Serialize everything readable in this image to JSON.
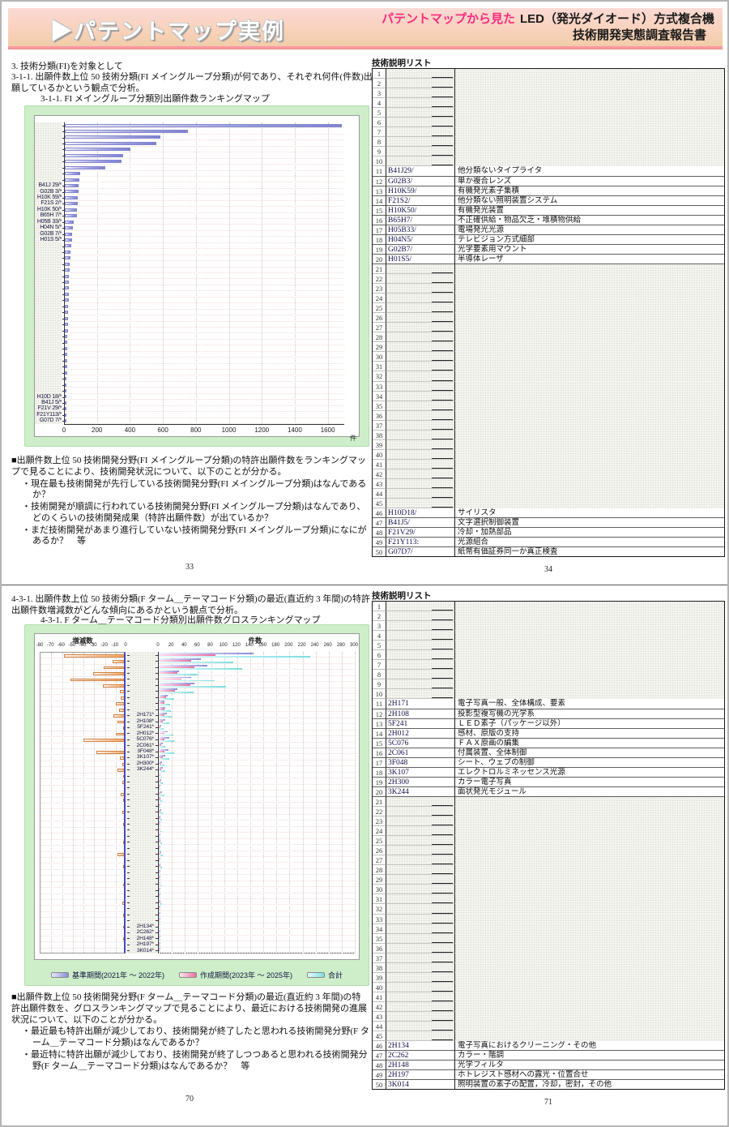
{
  "header": {
    "arrow": "▶",
    "title": "パテントマップ実例",
    "subtitle_highlight": "パテントマップから見た",
    "subtitle_main": "LED（発光ダイオード）方式複合機",
    "subtitle_sub": "技術開発実態調査報告書"
  },
  "top_left": {
    "heading": "3. 技術分類(FI)を対象として",
    "paragraph": "3-1-1. 出願件数上位 50 技術分類(FI メイングループ分類)が何であり、それぞれ何件(件数)出願しているかという観点で分析。",
    "chart_caption": "3-1-1. FI メイングループ分類別出願件数ランキングマップ",
    "notes_intro": "■出願件数上位 50 技術開発分野(FI メイングループ分類)の特許出願件数をランキングマップで見ることにより、技術開発状況について、以下のことが分かる。",
    "notes": [
      "・現在最も技術開発が先行している技術開発分野(FI メイングループ分類)はなんであるか？",
      "・技術開発が順調に行われている技術開発分野(FI メイングループ分類)はなんであり、どのくらいの技術開発成果（特許出願件数）が出ているか？",
      "・まだ技術開発があまり進行していない技術開発分野(FI メイングループ分類)になにがあるか？　等"
    ],
    "page_number": "33"
  },
  "top_right": {
    "list_title": "技術説明リスト",
    "page_number": "34"
  },
  "bottom_left": {
    "paragraph": "4-3-1. 出願件数上位 50 技術分類(F ターム＿テーマコード分類)の最近(直近約 3 年間)の特許出願件数増減数がどんな傾向にあるかという観点で分析。",
    "chart_caption": "4-3-1. F ターム＿テーマコード分類別出願件数グロスランキングマップ",
    "notes_intro": "■出願件数上位 50 技術開発分野(F ターム＿テーマコード分類)の最近(直近約 3 年間)の特許出願件数を、グロスランキングマップで見ることにより、最近における技術開発の進展状況について、以下のことが分かる。",
    "notes": [
      "・最近最も特許出願が減少しており、技術開発が終了したと思われる技術開発分野(F ターム＿テーマコード分類)はなんであるか？",
      "・最近特に特許出願が減少しており、技術開発が終了しつつあると思われる技術開発分野(F ターム＿テーマコード分類)はなんであるか？　等"
    ],
    "page_number": "70"
  },
  "bottom_right": {
    "list_title": "技術説明リスト",
    "page_number": "71"
  },
  "chart_data": [
    {
      "type": "bar",
      "orientation": "horizontal",
      "title": "3-1-1. FI メイングループ分類別出願件数ランキングマップ",
      "xlabel": "件",
      "xlim": [
        0,
        1700
      ],
      "xticks": [
        0,
        200,
        400,
        600,
        800,
        1000,
        1200,
        1400,
        1600
      ],
      "categories": [
        "",
        "",
        "",
        "",
        "",
        "",
        "",
        "",
        "",
        "",
        "B41J 29/*",
        "G02B 3/*",
        "H10K 59/*",
        "F21S 2/*",
        "H10K 50/*",
        "B65H 7/*",
        "H05B 33/*",
        "H04N 5/*",
        "G02B 7/*",
        "H01S 5/*",
        "",
        "",
        "",
        "",
        "",
        "",
        "",
        "",
        "",
        "",
        "",
        "",
        "",
        "",
        "",
        "",
        "",
        "",
        "",
        "",
        "",
        "",
        "",
        "",
        "",
        "H10D 18/*",
        "B41J 5/*",
        "F21V 29/*",
        "F21Y113/*",
        "G07D 7/*"
      ],
      "values": [
        1680,
        745,
        580,
        555,
        400,
        355,
        345,
        245,
        92,
        88,
        85,
        82,
        80,
        78,
        75,
        72,
        56,
        50,
        46,
        42,
        38,
        35,
        32,
        30,
        28,
        26,
        25,
        24,
        23,
        22,
        21,
        20,
        19,
        18,
        17,
        16,
        15,
        15,
        14,
        14,
        13,
        13,
        12,
        12,
        11,
        11,
        10,
        10,
        9,
        9
      ]
    },
    {
      "type": "bar",
      "variant": "dual-panel-grouped",
      "title": "4-3-1. F ターム＿テーマコード分類別出願件数グロスランキングマップ",
      "left_title": "増減数",
      "right_title": "件数",
      "left_xlim": [
        -80,
        0
      ],
      "left_xticks": [
        -80,
        -70,
        -60,
        -50,
        -40,
        -30,
        -20,
        -10,
        0
      ],
      "right_xlim": [
        0,
        300
      ],
      "right_xticks": [
        0,
        20,
        40,
        60,
        80,
        100,
        120,
        140,
        160,
        180,
        200,
        220,
        240,
        260,
        280,
        300
      ],
      "categories": [
        "",
        "",
        "",
        "",
        "",
        "",
        "",
        "",
        "",
        "",
        "2H171*",
        "2H108*",
        "5F241*",
        "2H012*",
        "5C076*",
        "2C061*",
        "3F048*",
        "3K107*",
        "2H300*",
        "3K244*",
        "",
        "",
        "",
        "",
        "",
        "",
        "",
        "",
        "",
        "",
        "",
        "",
        "",
        "",
        "",
        "",
        "",
        "",
        "",
        "",
        "",
        "",
        "",
        "",
        "",
        "2H134*",
        "2C262*",
        "2H148*",
        "2H197*",
        "3K014*"
      ],
      "decrease": [
        -58,
        -13,
        -21,
        -31,
        -52,
        -22,
        -6,
        -5,
        -10,
        -7,
        -12,
        -8,
        -3,
        -10,
        -40,
        -2,
        -28,
        -6,
        -4,
        -8,
        -3,
        -4,
        -2,
        -5,
        -3,
        -2,
        -4,
        -2,
        -3,
        -2,
        -1,
        -3,
        -2,
        -8,
        -2,
        -3,
        -1,
        -2,
        -3,
        -1,
        -2,
        -4,
        -2,
        -3,
        -2,
        -3,
        -2,
        -3,
        -2,
        -2
      ],
      "series": [
        {
          "name": "基準期間(2021年 ～ 2022年)",
          "values": [
            145,
            65,
            74,
            31,
            50,
            55,
            28,
            13,
            9,
            10,
            12,
            10,
            4,
            14,
            16,
            6,
            15,
            10,
            5,
            6,
            3,
            4,
            2,
            5,
            3,
            2,
            4,
            3,
            2,
            3,
            2,
            3,
            2,
            4,
            2,
            3,
            2,
            2,
            3,
            2,
            2,
            3,
            2,
            2,
            2,
            2,
            2,
            2,
            2,
            2
          ]
        },
        {
          "name": "作成期間(2023年 ～ 2025年)",
          "values": [
            87,
            49,
            54,
            29,
            35,
            48,
            25,
            11,
            8,
            8,
            8,
            6,
            3,
            8,
            8,
            4,
            8,
            6,
            4,
            4,
            2,
            2,
            1,
            3,
            2,
            1,
            2,
            2,
            1,
            2,
            1,
            2,
            1,
            2,
            1,
            2,
            1,
            1,
            2,
            1,
            1,
            2,
            1,
            1,
            1,
            1,
            1,
            1,
            1,
            1
          ]
        },
        {
          "name": "合計",
          "values": [
            232,
            114,
            128,
            60,
            85,
            103,
            53,
            24,
            17,
            18,
            20,
            16,
            7,
            22,
            24,
            10,
            23,
            16,
            9,
            10,
            5,
            6,
            3,
            8,
            5,
            3,
            6,
            5,
            3,
            5,
            3,
            5,
            3,
            6,
            3,
            5,
            3,
            3,
            5,
            3,
            3,
            5,
            3,
            3,
            3,
            3,
            3,
            3,
            3,
            3
          ]
        }
      ],
      "legend_position": "bottom"
    }
  ],
  "tables": {
    "top": {
      "total_rows": 50,
      "rows": [
        [
          11,
          "B41J29/",
          "他分類ないタイプライタ"
        ],
        [
          12,
          "G02B3/",
          "単か複合レンズ"
        ],
        [
          13,
          "H10K59/",
          "有機発光素子集積"
        ],
        [
          14,
          "F21S2/",
          "他分類ない照明装置システム"
        ],
        [
          15,
          "H10K50/",
          "有機発光装置"
        ],
        [
          16,
          "B65H7/",
          "不正確供給・物品欠乏・堆積物供給"
        ],
        [
          17,
          "H05B33/",
          "電場発光光源"
        ],
        [
          18,
          "H04N5/",
          "テレビジョン方式細部"
        ],
        [
          19,
          "G02B7/",
          "光学要素用マウント"
        ],
        [
          20,
          "H01S5/",
          "半導体レーザ"
        ],
        [
          46,
          "H10D18/",
          "サイリスタ"
        ],
        [
          47,
          "B41J5/",
          "文字選択制御装置"
        ],
        [
          48,
          "F21V29/",
          "冷却・加熱部品"
        ],
        [
          49,
          "F21Y113:",
          "光源組合"
        ],
        [
          50,
          "G07D7/",
          "紙幣有価証券同一か真正検査"
        ]
      ]
    },
    "bottom": {
      "total_rows": 50,
      "rows": [
        [
          11,
          "2H171",
          "電子写真一般、全体構成、要素"
        ],
        [
          12,
          "2H108",
          "投影型複写機の光学系"
        ],
        [
          13,
          "5F241",
          "ＬＥＤ素子（パッケージ以外）"
        ],
        [
          14,
          "2H012",
          "感材、原版の支持"
        ],
        [
          15,
          "5C076",
          "ＦＡＸ原画の編集"
        ],
        [
          16,
          "2C061",
          "付属装置、全体制御"
        ],
        [
          17,
          "3F048",
          "シート、ウェブの制御"
        ],
        [
          18,
          "3K107",
          "エレクトロルミネッセンス光源"
        ],
        [
          19,
          "2H300",
          "カラー電子写真"
        ],
        [
          20,
          "3K244",
          "面状発光モジュール"
        ],
        [
          46,
          "2H134",
          "電子写真におけるクリーニング・その他"
        ],
        [
          47,
          "2C262",
          "カラー・階調"
        ],
        [
          48,
          "2H148",
          "光学フィルタ"
        ],
        [
          49,
          "2H197",
          "ホトレジスト感材への露光・位置合せ"
        ],
        [
          50,
          "3K014",
          "照明装置の素子の配置，冷却，密封，その他"
        ]
      ]
    }
  },
  "colors": {
    "accent_pink": "#ff2a7f",
    "panel_green": "#cdeec9",
    "bar_blue": "#8b8fd8",
    "decrease_orange": "#f2a05a",
    "series_base": "#8a8ed8",
    "series_recent": "#ee6f9f",
    "series_total": "#7adfe2"
  }
}
